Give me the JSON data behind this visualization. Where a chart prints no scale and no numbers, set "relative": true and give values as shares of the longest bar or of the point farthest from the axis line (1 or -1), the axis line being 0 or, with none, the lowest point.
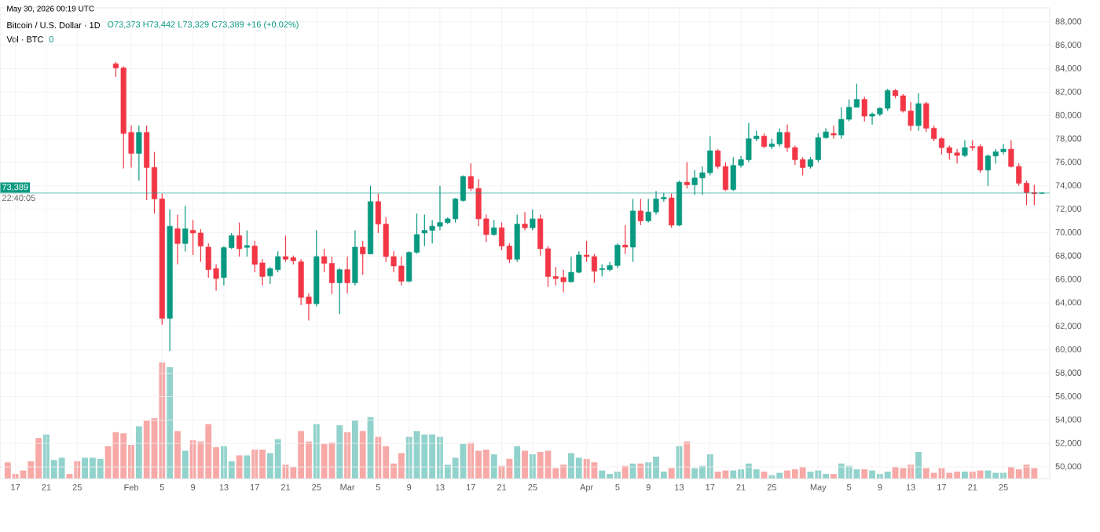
{
  "chart_data": [
    {
      "type": "candlestick",
      "title": "Bitcoin / U.S. Dollar · 1D",
      "subtitle": "O73,373 H73,442 L73,329 C73,389 +16 (+0.02%)",
      "annotations": [
        "May 30, 2026 00:19 UTC",
        "22:40:05"
      ],
      "xlim": [
        "2026-01-15",
        "2026-05-31"
      ],
      "ylim": [
        49000,
        89200
      ],
      "grid": true,
      "xticks": [
        {
          "value": "2026-01-17",
          "label": "17"
        },
        {
          "value": "2026-01-21",
          "label": "21"
        },
        {
          "value": "2026-01-25",
          "label": "25"
        },
        {
          "value": "2026-02-01",
          "label": "Feb"
        },
        {
          "value": "2026-02-05",
          "label": "5"
        },
        {
          "value": "2026-02-09",
          "label": "9"
        },
        {
          "value": "2026-02-13",
          "label": "13"
        },
        {
          "value": "2026-02-17",
          "label": "17"
        },
        {
          "value": "2026-02-21",
          "label": "21"
        },
        {
          "value": "2026-02-25",
          "label": "25"
        },
        {
          "value": "2026-03-01",
          "label": "Mar"
        },
        {
          "value": "2026-03-05",
          "label": "5"
        },
        {
          "value": "2026-03-09",
          "label": "9"
        },
        {
          "value": "2026-03-13",
          "label": "13"
        },
        {
          "value": "2026-03-17",
          "label": "17"
        },
        {
          "value": "2026-03-21",
          "label": "21"
        },
        {
          "value": "2026-03-25",
          "label": "25"
        },
        {
          "value": "2026-04-01",
          "label": "Apr"
        },
        {
          "value": "2026-04-05",
          "label": "5"
        },
        {
          "value": "2026-04-09",
          "label": "9"
        },
        {
          "value": "2026-04-13",
          "label": "13"
        },
        {
          "value": "2026-04-17",
          "label": "17"
        },
        {
          "value": "2026-04-21",
          "label": "21"
        },
        {
          "value": "2026-04-25",
          "label": "25"
        },
        {
          "value": "2026-05-01",
          "label": "May"
        },
        {
          "value": "2026-05-05",
          "label": "5"
        },
        {
          "value": "2026-05-09",
          "label": "9"
        },
        {
          "value": "2026-05-13",
          "label": "13"
        },
        {
          "value": "2026-05-17",
          "label": "17"
        },
        {
          "value": "2026-05-21",
          "label": "21"
        },
        {
          "value": "2026-05-25",
          "label": "25"
        }
      ],
      "yticks": [
        {
          "value": 50000,
          "label": "50,000"
        },
        {
          "value": 52000,
          "label": "52,000"
        },
        {
          "value": 54000,
          "label": "54,000"
        },
        {
          "value": 56000,
          "label": "56,000"
        },
        {
          "value": 58000,
          "label": "58,000"
        },
        {
          "value": 60000,
          "label": "60,000"
        },
        {
          "value": 62000,
          "label": "62,000"
        },
        {
          "value": 64000,
          "label": "64,000"
        },
        {
          "value": 66000,
          "label": "66,000"
        },
        {
          "value": 68000,
          "label": "68,000"
        },
        {
          "value": 70000,
          "label": "70,000"
        },
        {
          "value": 72000,
          "label": "72,000"
        },
        {
          "value": 74000,
          "label": "74,000"
        },
        {
          "value": 76000,
          "label": "76,000"
        },
        {
          "value": 78000,
          "label": "78,000"
        },
        {
          "value": 80000,
          "label": "80,000"
        },
        {
          "value": 82000,
          "label": "82,000"
        },
        {
          "value": 84000,
          "label": "84,000"
        },
        {
          "value": 86000,
          "label": "86,000"
        },
        {
          "value": 88000,
          "label": "88,000"
        }
      ],
      "ref_lines": [
        {
          "axis": "y",
          "value": 73389,
          "label": "73,389",
          "color": "#089981"
        }
      ],
      "x": [
        "2026-01-30",
        "2026-01-31",
        "2026-02-01",
        "2026-02-02",
        "2026-02-03",
        "2026-02-04",
        "2026-02-05",
        "2026-02-06",
        "2026-02-07",
        "2026-02-08",
        "2026-02-09",
        "2026-02-10",
        "2026-02-11",
        "2026-02-12",
        "2026-02-13",
        "2026-02-14",
        "2026-02-15",
        "2026-02-16",
        "2026-02-17",
        "2026-02-18",
        "2026-02-19",
        "2026-02-20",
        "2026-02-21",
        "2026-02-22",
        "2026-02-23",
        "2026-02-24",
        "2026-02-25",
        "2026-02-26",
        "2026-02-27",
        "2026-02-28",
        "2026-03-01",
        "2026-03-02",
        "2026-03-03",
        "2026-03-04",
        "2026-03-05",
        "2026-03-06",
        "2026-03-07",
        "2026-03-08",
        "2026-03-09",
        "2026-03-10",
        "2026-03-11",
        "2026-03-12",
        "2026-03-13",
        "2026-03-14",
        "2026-03-15",
        "2026-03-16",
        "2026-03-17",
        "2026-03-18",
        "2026-03-19",
        "2026-03-20",
        "2026-03-21",
        "2026-03-22",
        "2026-03-23",
        "2026-03-24",
        "2026-03-25",
        "2026-03-26",
        "2026-03-27",
        "2026-03-28",
        "2026-03-29",
        "2026-03-30",
        "2026-03-31",
        "2026-04-01",
        "2026-04-02",
        "2026-04-03",
        "2026-04-04",
        "2026-04-05",
        "2026-04-06",
        "2026-04-07",
        "2026-04-08",
        "2026-04-09",
        "2026-04-10",
        "2026-04-11",
        "2026-04-12",
        "2026-04-13",
        "2026-04-14",
        "2026-04-15",
        "2026-04-16",
        "2026-04-17",
        "2026-04-18",
        "2026-04-19",
        "2026-04-20",
        "2026-04-21",
        "2026-04-22",
        "2026-04-23",
        "2026-04-24",
        "2026-04-25",
        "2026-04-26",
        "2026-04-27",
        "2026-04-28",
        "2026-04-29",
        "2026-04-30",
        "2026-05-01",
        "2026-05-02",
        "2026-05-03",
        "2026-05-04",
        "2026-05-05",
        "2026-05-06",
        "2026-05-07",
        "2026-05-08",
        "2026-05-09",
        "2026-05-10",
        "2026-05-11",
        "2026-05-12",
        "2026-05-13",
        "2026-05-14",
        "2026-05-15",
        "2026-05-16",
        "2026-05-17",
        "2026-05-18",
        "2026-05-19",
        "2026-05-20",
        "2026-05-21",
        "2026-05-22",
        "2026-05-23",
        "2026-05-24",
        "2026-05-25",
        "2026-05-26",
        "2026-05-27",
        "2026-05-28",
        "2026-05-29",
        "2026-05-30"
      ],
      "ohlc": [
        [
          84421,
          84600,
          83300,
          84064
        ],
        [
          84064,
          84200,
          75476,
          78473
        ],
        [
          78563,
          79145,
          75565,
          76773
        ],
        [
          76773,
          79145,
          74447,
          78563
        ],
        [
          78563,
          79145,
          72792,
          75565
        ],
        [
          75565,
          76900,
          71630,
          72881
        ],
        [
          72881,
          73329,
          62146,
          62682
        ],
        [
          62682,
          71987,
          59910,
          70555
        ],
        [
          70331,
          71540,
          67290,
          69079
        ],
        [
          69079,
          72300,
          68400,
          70331
        ],
        [
          70200,
          71093,
          68095,
          69973
        ],
        [
          69973,
          70300,
          67513,
          68855
        ],
        [
          68766,
          69079,
          66171,
          66842
        ],
        [
          66932,
          67290,
          65053,
          66082
        ],
        [
          66171,
          68855,
          65500,
          68721
        ],
        [
          68721,
          69973,
          68600,
          69750
        ],
        [
          69750,
          70868,
          67960,
          68631
        ],
        [
          68750,
          70200,
          67960,
          68900
        ],
        [
          68855,
          69300,
          66618,
          67290
        ],
        [
          67424,
          67737,
          65500,
          66260
        ],
        [
          66305,
          67066,
          65634,
          66932
        ],
        [
          66842,
          68408,
          66618,
          67960
        ],
        [
          67960,
          69750,
          67513,
          67737
        ],
        [
          67870,
          68050,
          67290,
          67603
        ],
        [
          67513,
          67737,
          63800,
          64471
        ],
        [
          64516,
          64829,
          62504,
          63935
        ],
        [
          63935,
          70200,
          63711,
          67960
        ],
        [
          67960,
          68631,
          66618,
          67379
        ],
        [
          67379,
          67960,
          64740,
          65724
        ],
        [
          65724,
          66976,
          63040,
          66842
        ],
        [
          66842,
          67960,
          64829,
          65724
        ],
        [
          65724,
          70200,
          65500,
          68766
        ],
        [
          68766,
          69300,
          66400,
          68184
        ],
        [
          68184,
          74000,
          68184,
          72657
        ],
        [
          72657,
          73329,
          69973,
          70734
        ],
        [
          70734,
          71317,
          67513,
          67960
        ],
        [
          67960,
          68408,
          66618,
          67155
        ],
        [
          67155,
          67960,
          65500,
          65858
        ],
        [
          65858,
          68408,
          65768,
          68318
        ],
        [
          68318,
          71630,
          68200,
          69839
        ],
        [
          69973,
          71540,
          68855,
          70197
        ],
        [
          70197,
          71093,
          69079,
          70555
        ],
        [
          70555,
          74000,
          70197,
          70868
        ],
        [
          70868,
          71317,
          70734,
          71182
        ],
        [
          71182,
          72970,
          70868,
          72881
        ],
        [
          72747,
          74895,
          72657,
          74805
        ],
        [
          74805,
          75924,
          73553,
          73776
        ],
        [
          73776,
          74581,
          70555,
          71182
        ],
        [
          71182,
          71540,
          69213,
          69839
        ],
        [
          69839,
          71093,
          69750,
          70420
        ],
        [
          70420,
          70868,
          68497,
          68855
        ],
        [
          68855,
          69079,
          67424,
          67737
        ],
        [
          67737,
          71540,
          67513,
          70734
        ],
        [
          70734,
          71764,
          70197,
          70420
        ],
        [
          70420,
          71987,
          70197,
          71182
        ],
        [
          71182,
          71540,
          68050,
          68631
        ],
        [
          68631,
          68855,
          65366,
          66260
        ],
        [
          66260,
          67066,
          65500,
          66082
        ],
        [
          66171,
          66842,
          64918,
          65813
        ],
        [
          65813,
          67960,
          65724,
          66618
        ],
        [
          66618,
          68408,
          66529,
          68095
        ],
        [
          68095,
          69303,
          67513,
          67960
        ],
        [
          67960,
          68184,
          65724,
          66708
        ],
        [
          66842,
          67290,
          66260,
          66932
        ],
        [
          66842,
          67513,
          66708,
          67200
        ],
        [
          67200,
          69079,
          66976,
          68944
        ],
        [
          68944,
          70644,
          68184,
          68766
        ],
        [
          68766,
          72881,
          67513,
          71853
        ],
        [
          71853,
          72881,
          70644,
          71004
        ],
        [
          71004,
          72881,
          70868,
          71764
        ],
        [
          71764,
          73553,
          71540,
          72881
        ],
        [
          72881,
          73400,
          72657,
          73015
        ],
        [
          72970,
          73329,
          70420,
          70644
        ],
        [
          70644,
          74447,
          70555,
          74312
        ],
        [
          74312,
          76013,
          73776,
          74089
        ],
        [
          74089,
          75342,
          73240,
          74671
        ],
        [
          74671,
          75655,
          73240,
          75118
        ],
        [
          75118,
          78250,
          74895,
          76997
        ],
        [
          76997,
          77131,
          75476,
          75655
        ],
        [
          75655,
          76013,
          73553,
          73687
        ],
        [
          73687,
          76460,
          73553,
          75744
        ],
        [
          75744,
          76550,
          75565,
          76236
        ],
        [
          76236,
          79369,
          76013,
          78026
        ],
        [
          78026,
          78697,
          77802,
          78250
        ],
        [
          78250,
          78473,
          77220,
          77355
        ],
        [
          77355,
          78026,
          77131,
          77578
        ],
        [
          77578,
          78921,
          77355,
          78563
        ],
        [
          78563,
          79235,
          76907,
          77265
        ],
        [
          77265,
          77444,
          75789,
          76236
        ],
        [
          76236,
          76460,
          74895,
          75565
        ],
        [
          75655,
          76460,
          75476,
          76236
        ],
        [
          76236,
          78473,
          76013,
          78115
        ],
        [
          78115,
          78921,
          78026,
          78607
        ],
        [
          78473,
          79145,
          78026,
          78339
        ],
        [
          78339,
          80711,
          78026,
          79682
        ],
        [
          79682,
          81380,
          79503,
          80711
        ],
        [
          80711,
          82721,
          80711,
          81380
        ],
        [
          81380,
          81604,
          79503,
          79950
        ],
        [
          79950,
          80262,
          79235,
          80128
        ],
        [
          80128,
          80711,
          79950,
          80620
        ],
        [
          80620,
          82274,
          80397,
          82140
        ],
        [
          82140,
          82274,
          81470,
          81693
        ],
        [
          81693,
          81827,
          80262,
          80397
        ],
        [
          80397,
          81157,
          78697,
          79145
        ],
        [
          79145,
          81917,
          78697,
          81022
        ],
        [
          81022,
          81157,
          78607,
          78921
        ],
        [
          78921,
          79145,
          77802,
          78026
        ],
        [
          78026,
          78160,
          76683,
          77265
        ],
        [
          77265,
          77444,
          76236,
          76818
        ],
        [
          76818,
          77131,
          75924,
          76594
        ],
        [
          76594,
          77891,
          76460,
          77265
        ],
        [
          77355,
          77891,
          76997,
          77265
        ],
        [
          77355,
          77578,
          75118,
          75342
        ],
        [
          75342,
          76683,
          74000,
          76550
        ],
        [
          76550,
          77131,
          75924,
          76907
        ],
        [
          76907,
          77578,
          76683,
          77131
        ],
        [
          77131,
          77891,
          75565,
          75655
        ],
        [
          75655,
          75924,
          74000,
          74223
        ],
        [
          74223,
          74447,
          72344,
          73419
        ],
        [
          73419,
          74089,
          72344,
          73329
        ],
        [
          73373,
          73442,
          73329,
          73389
        ]
      ],
      "colors": [
        "#f23645",
        "#f23645",
        "#f23645",
        "#089981",
        "#f23645",
        "#f23645",
        "#f23645",
        "#089981",
        "#f23645",
        "#089981",
        "#f23645",
        "#f23645",
        "#f23645",
        "#f23645",
        "#089981",
        "#089981",
        "#f23645",
        "#089981",
        "#f23645",
        "#f23645",
        "#089981",
        "#089981",
        "#f23645",
        "#f23645",
        "#f23645",
        "#f23645",
        "#089981",
        "#f23645",
        "#f23645",
        "#089981",
        "#f23645",
        "#089981",
        "#f23645",
        "#089981",
        "#f23645",
        "#f23645",
        "#f23645",
        "#f23645",
        "#089981",
        "#089981",
        "#089981",
        "#089981",
        "#089981",
        "#089981",
        "#089981",
        "#089981",
        "#f23645",
        "#f23645",
        "#f23645",
        "#089981",
        "#f23645",
        "#f23645",
        "#089981",
        "#f23645",
        "#089981",
        "#f23645",
        "#f23645",
        "#f23645",
        "#f23645",
        "#089981",
        "#089981",
        "#f23645",
        "#f23645",
        "#089981",
        "#089981",
        "#089981",
        "#f23645",
        "#089981",
        "#f23645",
        "#089981",
        "#089981",
        "#089981",
        "#f23645",
        "#089981",
        "#f23645",
        "#089981",
        "#089981",
        "#089981",
        "#f23645",
        "#f23645",
        "#089981",
        "#089981",
        "#089981",
        "#089981",
        "#f23645",
        "#089981",
        "#089981",
        "#f23645",
        "#f23645",
        "#f23645",
        "#089981",
        "#089981",
        "#089981",
        "#f23645",
        "#089981",
        "#089981",
        "#089981",
        "#f23645",
        "#089981",
        "#089981",
        "#089981",
        "#f23645",
        "#f23645",
        "#f23645",
        "#089981",
        "#f23645",
        "#f23645",
        "#f23645",
        "#f23645",
        "#f23645",
        "#089981",
        "#f23645",
        "#f23645",
        "#089981",
        "#089981",
        "#089981",
        "#f23645",
        "#f23645",
        "#f23645",
        "#f23645",
        "#089981"
      ]
    },
    {
      "type": "bar",
      "title": "Vol · BTC",
      "subtitle": "0",
      "relative": true,
      "xlim": [
        "2026-01-15",
        "2026-05-31"
      ],
      "x": [
        "2026-01-16",
        "2026-01-17",
        "2026-01-18",
        "2026-01-19",
        "2026-01-20",
        "2026-01-21",
        "2026-01-22",
        "2026-01-23",
        "2026-01-24",
        "2026-01-25",
        "2026-01-26",
        "2026-01-27",
        "2026-01-28",
        "2026-01-29",
        "2026-01-30",
        "2026-01-31",
        "2026-02-01",
        "2026-02-02",
        "2026-02-03",
        "2026-02-04",
        "2026-02-05",
        "2026-02-06",
        "2026-02-07",
        "2026-02-08",
        "2026-02-09",
        "2026-02-10",
        "2026-02-11",
        "2026-02-12",
        "2026-02-13",
        "2026-02-14",
        "2026-02-15",
        "2026-02-16",
        "2026-02-17",
        "2026-02-18",
        "2026-02-19",
        "2026-02-20",
        "2026-02-21",
        "2026-02-22",
        "2026-02-23",
        "2026-02-24",
        "2026-02-25",
        "2026-02-26",
        "2026-02-27",
        "2026-02-28",
        "2026-03-01",
        "2026-03-02",
        "2026-03-03",
        "2026-03-04",
        "2026-03-05",
        "2026-03-06",
        "2026-03-07",
        "2026-03-08",
        "2026-03-09",
        "2026-03-10",
        "2026-03-11",
        "2026-03-12",
        "2026-03-13",
        "2026-03-14",
        "2026-03-15",
        "2026-03-16",
        "2026-03-17",
        "2026-03-18",
        "2026-03-19",
        "2026-03-20",
        "2026-03-21",
        "2026-03-22",
        "2026-03-23",
        "2026-03-24",
        "2026-03-25",
        "2026-03-26",
        "2026-03-27",
        "2026-03-28",
        "2026-03-29",
        "2026-03-30",
        "2026-03-31",
        "2026-04-01",
        "2026-04-02",
        "2026-04-03",
        "2026-04-04",
        "2026-04-05",
        "2026-04-06",
        "2026-04-07",
        "2026-04-08",
        "2026-04-09",
        "2026-04-10",
        "2026-04-11",
        "2026-04-12",
        "2026-04-13",
        "2026-04-14",
        "2026-04-15",
        "2026-04-16",
        "2026-04-17",
        "2026-04-18",
        "2026-04-19",
        "2026-04-20",
        "2026-04-21",
        "2026-04-22",
        "2026-04-23",
        "2026-04-24",
        "2026-04-25",
        "2026-04-26",
        "2026-04-27",
        "2026-04-28",
        "2026-04-29",
        "2026-04-30",
        "2026-05-01",
        "2026-05-02",
        "2026-05-03",
        "2026-05-04",
        "2026-05-05",
        "2026-05-06",
        "2026-05-07",
        "2026-05-08",
        "2026-05-09",
        "2026-05-10",
        "2026-05-11",
        "2026-05-12",
        "2026-05-13",
        "2026-05-14",
        "2026-05-15",
        "2026-05-16",
        "2026-05-17",
        "2026-05-18",
        "2026-05-19",
        "2026-05-20",
        "2026-05-21",
        "2026-05-22",
        "2026-05-23",
        "2026-05-24",
        "2026-05-25",
        "2026-05-26",
        "2026-05-27",
        "2026-05-28",
        "2026-05-29",
        "2026-05-30"
      ],
      "values": [
        0.14,
        0.04,
        0.07,
        0.15,
        0.35,
        0.38,
        0.16,
        0.18,
        0.04,
        0.15,
        0.18,
        0.18,
        0.17,
        0.28,
        0.4,
        0.39,
        0.29,
        0.45,
        0.5,
        0.52,
        1,
        0.96,
        0.41,
        0.24,
        0.33,
        0.32,
        0.47,
        0.27,
        0.28,
        0.15,
        0.2,
        0.2,
        0.25,
        0.25,
        0.22,
        0.34,
        0.12,
        0.1,
        0.41,
        0.32,
        0.47,
        0.3,
        0.31,
        0.46,
        0.4,
        0.5,
        0.41,
        0.53,
        0.36,
        0.28,
        0.13,
        0.22,
        0.36,
        0.41,
        0.38,
        0.38,
        0.36,
        0.12,
        0.18,
        0.3,
        0.31,
        0.24,
        0.25,
        0.21,
        0.11,
        0.17,
        0.28,
        0.24,
        0.21,
        0.23,
        0.24,
        0.09,
        0.12,
        0.22,
        0.18,
        0.17,
        0.14,
        0.07,
        0.04,
        0.06,
        0.11,
        0.13,
        0.13,
        0.14,
        0.19,
        0.06,
        0.09,
        0.28,
        0.32,
        0.09,
        0.11,
        0.21,
        0.06,
        0.07,
        0.07,
        0.08,
        0.13,
        0.08,
        0.06,
        0.03,
        0.05,
        0.07,
        0.08,
        0.1,
        0.06,
        0.07,
        0.04,
        0.04,
        0.13,
        0.11,
        0.08,
        0.08,
        0.07,
        0.04,
        0.06,
        0.1,
        0.09,
        0.12,
        0.23,
        0.09,
        0.05,
        0.09,
        0.05,
        0.06,
        0.06,
        0.06,
        0.07,
        0.07,
        0.05,
        0.05,
        0.1,
        0.08,
        0.12,
        0.09,
        0
      ],
      "colors": [
        "#f7a9a7",
        "#f7a9a7",
        "#f7a9a7",
        "#f7a9a7",
        "#f7a9a7",
        "#92d2cc",
        "#92d2cc",
        "#92d2cc",
        "#f7a9a7",
        "#f7a9a7",
        "#92d2cc",
        "#92d2cc",
        "#92d2cc",
        "#f7a9a7",
        "#f7a9a7",
        "#f7a9a7",
        "#f7a9a7",
        "#92d2cc",
        "#f7a9a7",
        "#f7a9a7",
        "#f7a9a7",
        "#92d2cc",
        "#f7a9a7",
        "#92d2cc",
        "#f7a9a7",
        "#f7a9a7",
        "#f7a9a7",
        "#f7a9a7",
        "#92d2cc",
        "#92d2cc",
        "#f7a9a7",
        "#92d2cc",
        "#f7a9a7",
        "#f7a9a7",
        "#92d2cc",
        "#92d2cc",
        "#f7a9a7",
        "#f7a9a7",
        "#f7a9a7",
        "#f7a9a7",
        "#92d2cc",
        "#f7a9a7",
        "#f7a9a7",
        "#92d2cc",
        "#f7a9a7",
        "#92d2cc",
        "#f7a9a7",
        "#92d2cc",
        "#f7a9a7",
        "#f7a9a7",
        "#f7a9a7",
        "#f7a9a7",
        "#92d2cc",
        "#92d2cc",
        "#92d2cc",
        "#92d2cc",
        "#92d2cc",
        "#92d2cc",
        "#92d2cc",
        "#92d2cc",
        "#f7a9a7",
        "#f7a9a7",
        "#f7a9a7",
        "#92d2cc",
        "#f7a9a7",
        "#f7a9a7",
        "#92d2cc",
        "#f7a9a7",
        "#92d2cc",
        "#f7a9a7",
        "#f7a9a7",
        "#f7a9a7",
        "#f7a9a7",
        "#92d2cc",
        "#92d2cc",
        "#f7a9a7",
        "#f7a9a7",
        "#92d2cc",
        "#92d2cc",
        "#92d2cc",
        "#f7a9a7",
        "#92d2cc",
        "#f7a9a7",
        "#92d2cc",
        "#92d2cc",
        "#92d2cc",
        "#f7a9a7",
        "#92d2cc",
        "#f7a9a7",
        "#92d2cc",
        "#92d2cc",
        "#92d2cc",
        "#f7a9a7",
        "#f7a9a7",
        "#92d2cc",
        "#92d2cc",
        "#92d2cc",
        "#92d2cc",
        "#f7a9a7",
        "#92d2cc",
        "#92d2cc",
        "#f7a9a7",
        "#f7a9a7",
        "#f7a9a7",
        "#92d2cc",
        "#92d2cc",
        "#92d2cc",
        "#f7a9a7",
        "#92d2cc",
        "#92d2cc",
        "#92d2cc",
        "#f7a9a7",
        "#92d2cc",
        "#92d2cc",
        "#92d2cc",
        "#f7a9a7",
        "#f7a9a7",
        "#f7a9a7",
        "#92d2cc",
        "#f7a9a7",
        "#f7a9a7",
        "#f7a9a7",
        "#f7a9a7",
        "#f7a9a7",
        "#92d2cc",
        "#f7a9a7",
        "#f7a9a7",
        "#92d2cc",
        "#92d2cc",
        "#92d2cc",
        "#f7a9a7",
        "#f7a9a7",
        "#f7a9a7",
        "#f7a9a7",
        "#089981"
      ]
    }
  ]
}
